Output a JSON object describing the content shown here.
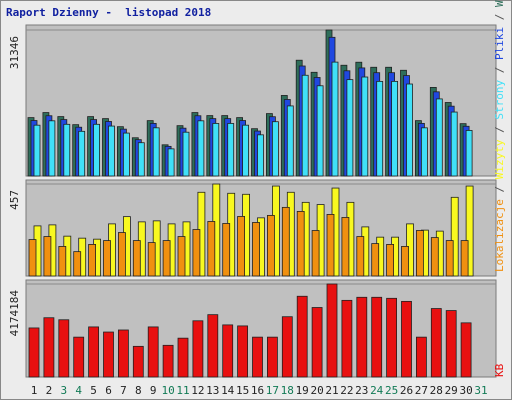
{
  "chart_data": {
    "type": "bar",
    "title": "Raport Dzienny -  listopad 2018",
    "categories": [
      "1",
      "2",
      "3",
      "4",
      "5",
      "6",
      "7",
      "8",
      "9",
      "10",
      "11",
      "12",
      "13",
      "14",
      "15",
      "16",
      "17",
      "18",
      "19",
      "20",
      "21",
      "22",
      "23",
      "24",
      "25",
      "26",
      "27",
      "28",
      "29",
      "30",
      "31"
    ],
    "category_colors": [
      "#222",
      "#222",
      "#117a55",
      "#117a55",
      "#222",
      "#222",
      "#222",
      "#222",
      "#222",
      "#117a55",
      "#117a55",
      "#222",
      "#222",
      "#222",
      "#222",
      "#222",
      "#117a55",
      "#117a55",
      "#222",
      "#222",
      "#222",
      "#222",
      "#222",
      "#117a55",
      "#117a55",
      "#222",
      "#222",
      "#222",
      "#222",
      "#222",
      "#117a55"
    ],
    "legend_separator": " / ",
    "panels": [
      {
        "ylim": [
          0,
          32420
        ],
        "yticks": [
          31346
        ],
        "series": [
          {
            "name": "Wywołania",
            "color": "#2e6e5a",
            "values": [
              12538,
              13620,
              12754,
              11025,
              12754,
              12322,
              10592,
              8215,
              11890,
              6700,
              10809,
              13620,
              12970,
              12970,
              12538,
              10160,
              13400,
              17294,
              24860,
              22266,
              31346,
              23780,
              24428,
              23347,
              23347,
              22700,
              11890,
              19023,
              15781,
              11240,
              0
            ]
          },
          {
            "name": "Pliki",
            "color": "#2048e0",
            "values": [
              11911,
              12939,
              12116,
              10474,
              12116,
              11706,
              10062,
              7804,
              11296,
              6365,
              10269,
              12939,
              12322,
              12322,
              11911,
              9652,
              12730,
              16429,
              23617,
              21153,
              29779,
              22591,
              23207,
              22180,
              22180,
              21565,
              11296,
              18072,
              14992,
              10678,
              0
            ]
          },
          {
            "name": "Strony",
            "color": "#40e0f8",
            "values": [
              10908,
              11849,
              11096,
              9592,
              11096,
              10720,
              9215,
              7147,
              10344,
              5829,
              9404,
              11849,
              11284,
              11284,
              10908,
              8839,
              11658,
              15046,
              21628,
              19371,
              24450,
              20689,
              21252,
              20312,
              20312,
              19749,
              10344,
              16550,
              13729,
              9779,
              0
            ]
          }
        ]
      },
      {
        "ylim": [
          0,
          477
        ],
        "yticks": [
          457
        ],
        "series": [
          {
            "name": "Wizyty",
            "color": "#f8f820",
            "values": [
              249,
              254,
              198,
              188,
              183,
              259,
              295,
              269,
              274,
              259,
              269,
              416,
              457,
              411,
              406,
              289,
              447,
              416,
              366,
              355,
              437,
              366,
              244,
              193,
              193,
              259,
              228,
              223,
              391,
              447,
              0
            ]
          },
          {
            "name": "Lokalizacje",
            "color": "#f09010",
            "values": [
              181,
              196,
              147,
              121,
              157,
              176,
              216,
              176,
              166,
              176,
              196,
              231,
              271,
              261,
              296,
              266,
              301,
              341,
              321,
              226,
              306,
              291,
              196,
              161,
              157,
              147,
              226,
              191,
              176,
              176,
              0
            ]
          }
        ]
      },
      {
        "ylim": [
          0,
          4353720
        ],
        "yticks": [
          4174184
        ],
        "series": [
          {
            "name": "KB",
            "color": "#e81010",
            "values": [
              2201770,
              2660000,
              2569000,
              1789000,
              2248000,
              2018000,
              2110000,
              1376000,
              2248000,
              1422000,
              1743000,
              2523000,
              2798000,
              2339000,
              2293000,
              1789000,
              1789000,
              2706000,
              3624000,
              3119000,
              4174184,
              3440000,
              3578000,
              3578000,
              3532000,
              3394000,
              1789000,
              3073000,
              2982000,
              2431000,
              0
            ]
          }
        ]
      }
    ]
  }
}
